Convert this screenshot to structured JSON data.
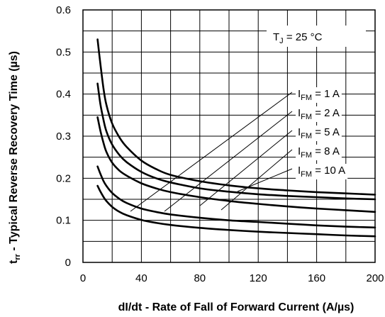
{
  "chart_data": {
    "type": "line",
    "title": "",
    "xlabel": "dI/dt - Rate of Fall of Forward Current (A/µs)",
    "ylabel_main": "t",
    "ylabel_sub": "rr",
    "ylabel_rest": " - Typical Reverse Recovery Time (µs)",
    "xlim": [
      0,
      200
    ],
    "ylim": [
      0,
      0.6
    ],
    "x_ticks": [
      "0",
      "40",
      "80",
      "120",
      "160",
      "200"
    ],
    "y_ticks": [
      "0",
      "0.1",
      "0.2",
      "0.3",
      "0.4",
      "0.5",
      "0.6"
    ],
    "grid": true,
    "condition": {
      "main": "T",
      "sub": "J",
      "rest": " = 25 °C"
    },
    "series": [
      {
        "label_main": "I",
        "label_sub": "FM",
        "label_rest": " = 1 A",
        "x": [
          10,
          12,
          14,
          16,
          20,
          25,
          30,
          40,
          50,
          60,
          80,
          100,
          120,
          140,
          160,
          180,
          200
        ],
        "y": [
          0.53,
          0.47,
          0.415,
          0.375,
          0.33,
          0.297,
          0.274,
          0.242,
          0.222,
          0.208,
          0.193,
          0.183,
          0.176,
          0.171,
          0.167,
          0.164,
          0.161
        ]
      },
      {
        "label_main": "I",
        "label_sub": "FM",
        "label_rest": " = 2 A",
        "x": [
          10,
          12,
          14,
          16,
          20,
          25,
          30,
          40,
          50,
          60,
          80,
          100,
          120,
          140,
          160,
          180,
          200
        ],
        "y": [
          0.425,
          0.375,
          0.34,
          0.312,
          0.28,
          0.255,
          0.238,
          0.215,
          0.2,
          0.19,
          0.176,
          0.168,
          0.162,
          0.158,
          0.155,
          0.152,
          0.15
        ]
      },
      {
        "label_main": "I",
        "label_sub": "FM",
        "label_rest": " = 5 A",
        "x": [
          10,
          12,
          14,
          16,
          20,
          25,
          30,
          40,
          50,
          60,
          80,
          100,
          120,
          140,
          160,
          180,
          200
        ],
        "y": [
          0.345,
          0.312,
          0.285,
          0.263,
          0.237,
          0.218,
          0.206,
          0.188,
          0.176,
          0.167,
          0.155,
          0.146,
          0.139,
          0.133,
          0.128,
          0.124,
          0.12
        ]
      },
      {
        "label_main": "I",
        "label_sub": "FM",
        "label_rest": " = 8 A",
        "x": [
          10,
          12,
          14,
          16,
          20,
          25,
          30,
          40,
          50,
          60,
          80,
          100,
          120,
          140,
          160,
          180,
          200
        ],
        "y": [
          0.228,
          0.21,
          0.194,
          0.182,
          0.165,
          0.151,
          0.141,
          0.128,
          0.12,
          0.114,
          0.106,
          0.1,
          0.096,
          0.092,
          0.088,
          0.085,
          0.083
        ]
      },
      {
        "label_main": "I",
        "label_sub": "FM",
        "label_rest": " = 10 A",
        "x": [
          10,
          12,
          14,
          16,
          20,
          25,
          30,
          40,
          50,
          60,
          80,
          100,
          120,
          140,
          160,
          180,
          200
        ],
        "y": [
          0.182,
          0.168,
          0.156,
          0.146,
          0.132,
          0.12,
          0.112,
          0.101,
          0.094,
          0.089,
          0.082,
          0.077,
          0.073,
          0.07,
          0.067,
          0.064,
          0.062
        ]
      }
    ]
  }
}
